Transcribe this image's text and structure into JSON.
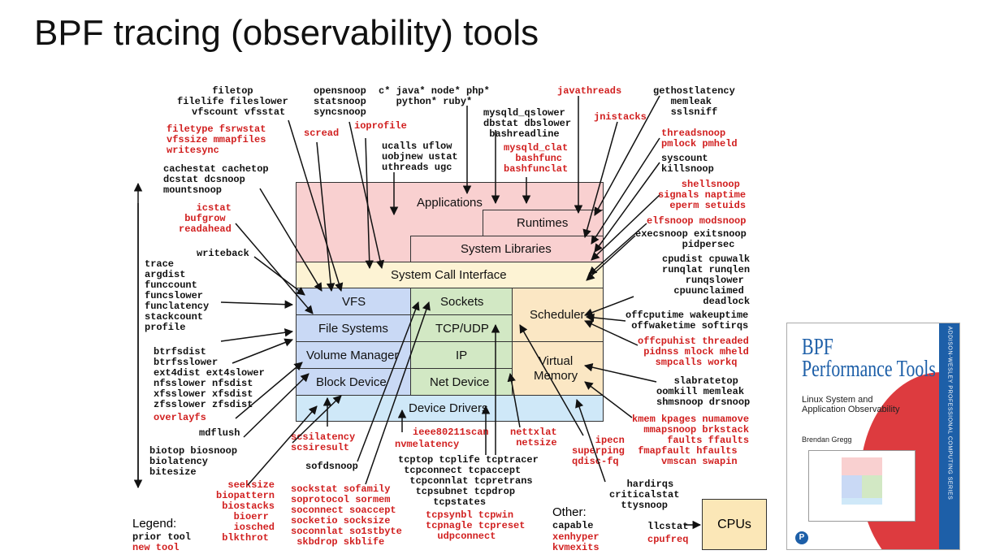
{
  "title": "BPF tracing (observability) tools",
  "layers": {
    "applications": "Applications",
    "runtimes": "Runtimes",
    "system_libraries": "System Libraries",
    "syscall_interface": "System Call Interface",
    "vfs": "VFS",
    "sockets": "Sockets",
    "scheduler": "Scheduler",
    "file_systems": "File Systems",
    "tcp_udp": "TCP/UDP",
    "volume_manager": "Volume Manager",
    "ip": "IP",
    "virtual_memory": "Virtual\nMemory",
    "block_device": "Block Device",
    "net_device": "Net Device",
    "device_drivers": "Device Drivers",
    "cpus": "CPUs"
  },
  "tools": {
    "filetop": "filetop\nfilelife fileslower\n  vfscount vfsstat",
    "opensnoop": "opensnoop\nstatsnoop\nsyncsnoop",
    "lang": "c* java* node* php*\n   python* ruby*",
    "javathreads": "javathreads",
    "gethostlatency": "gethostlatency\n   memleak\n   sslsniff",
    "mysqld": "mysqld_qslower\ndbstat dbslower\n bashreadline",
    "jnistacks": "jnistacks",
    "filetype": "filetype fsrwstat\nvfssize mmapfiles\nwritesync",
    "scread": "scread",
    "ioprofile": "ioprofile",
    "ucalls": "ucalls uflow\nuobjnew ustat\nuthreads ugc",
    "mysqld_clat": "mysqld_clat\n  bashfunc\nbashfunclat",
    "threadsnoop": "threadsnoop\npmlock pmheld",
    "syscount": "syscount\nkillsnoop",
    "cachestat": "cachestat cachetop\ndcstat dcsnoop\nmountsnoop",
    "shellsnoop": "    shellsnoop\nsignals naptime\n  eperm setuids",
    "icstat": "   icstat\n bufgrow\nreadahead",
    "elfsnoop": "elfsnoop modsnoop",
    "execsnoop": "execsnoop exitsnoop\n        pidpersec",
    "writeback": "writeback",
    "trace": "trace\nargdist\nfunccount\nfuncslower\nfunclatency\nstackcount\nprofile",
    "cpudist": "cpudist cpuwalk\nrunqlat runqlen\n    runqslower\n  cpuunclaimed\n       deadlock",
    "offcputime": "offcputime wakeuptime\n offwaketime softirqs",
    "offcpuhist": "offcpuhist threaded\n pidnss mlock mheld\n   smpcalls workq",
    "btrfsdist": "btrfsdist\nbtrfsslower\next4dist ext4slower\nnfsslower nfsdist\nxfsslower xfsdist\nzfsslower zfsdist",
    "overlayfs": "overlayfs",
    "slabratetop": "   slabratetop\noomkill memleak\nshmsnoop drsnoop",
    "kmem": "kmem kpages numamove\n  mmapsnoop brkstack\n      faults ffaults\n fmapfault hfaults\n     vmscan swapin",
    "mdflush": "mdflush",
    "ieee": "ieee80211scan",
    "nvmelatency": "nvmelatency",
    "nettxlat": "nettxlat\n netsize",
    "ipecn": "    ipecn\nsuperping\nqdisc-fq",
    "scsilatency": "scsilatency\nscsiresult",
    "biotop": "biotop biosnoop\nbiolatency\nbitesize",
    "sofdsnoop": "sofdsnoop",
    "tcptop": "tcptop tcplife tcptracer\n tcpconnect tcpaccept\n  tcpconnlat tcpretrans\n   tcpsubnet tcpdrop\n      tcpstates",
    "tcpsynbl": "tcpsynbl tcpwin\ntcpnagle tcpreset\n  udpconnect",
    "hardirqs": "   hardirqs\ncriticalstat\n  ttysnoop",
    "seeksize": "  seeksize\nbiopattern\n biostacks\n   bioerr\n   iosched\n blkthrot",
    "sockstat": "sockstat sofamily\nsoprotocol sormem\nsoconnect soaccept\nsocketio socksize\nsoconnlat so1stbyte\n skbdrop skblife",
    "llcstat": "llcstat",
    "cpufreq": "cpufreq",
    "capable": "capable",
    "xenhyper": "xenhyper\nkvmexits"
  },
  "legend": {
    "title": "Legend:",
    "prior": "prior tool",
    "new": "new tool"
  },
  "other": "Other:",
  "book": {
    "title": "BPF\nPerformance Tools",
    "subtitle": "Linux System and\nApplication Observability",
    "author": "Brendan Gregg",
    "spine": "ADDISON-WESLEY PROFESSIONAL COMPUTING SERIES",
    "logo": "P"
  },
  "colors": {
    "prior_tool": "#111111",
    "new_tool": "#d11f1f",
    "applications": "#f9d0d0",
    "syscall": "#fdf3d4",
    "vfs_stack": "#c9d9f5",
    "net_stack": "#d2e8c4",
    "scheduler": "#fbe7c4",
    "device_drivers": "#cfe8f8"
  }
}
